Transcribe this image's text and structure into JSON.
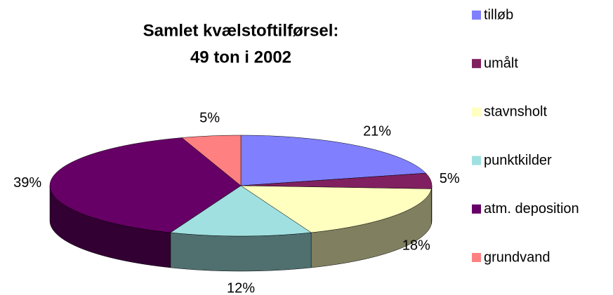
{
  "chart_data": {
    "type": "pie",
    "title": "Samlet kvælstoftilførsel:",
    "subtitle": "49 ton i 2002",
    "categories": [
      "tilløb",
      "umålt",
      "stavnsholt",
      "punktkilder",
      "atm. deposition",
      "grundvand"
    ],
    "values": [
      21,
      5,
      18,
      12,
      39,
      5
    ],
    "value_labels": [
      "21%",
      "5%",
      "18%",
      "12%",
      "39%",
      "5%"
    ],
    "colors": [
      "#8080ff",
      "#802060",
      "#ffffc0",
      "#a0e0e0",
      "#660066",
      "#ff8080"
    ],
    "legend": "right"
  }
}
